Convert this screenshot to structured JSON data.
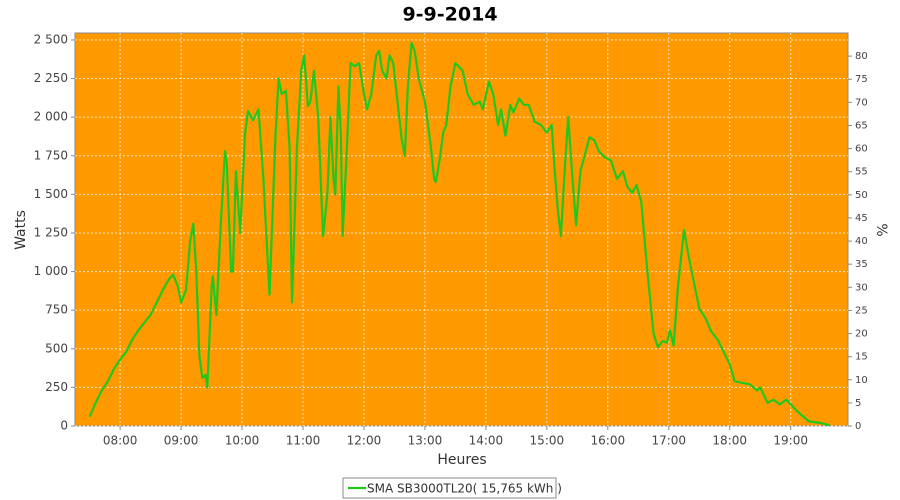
{
  "chart_data": {
    "type": "line",
    "title": "9-9-2014",
    "xlabel": "Heures",
    "ylabel": "Watts",
    "y2label": "%",
    "x": [
      7.5,
      7.6,
      7.7,
      7.8,
      7.9,
      8.0,
      8.1,
      8.2,
      8.3,
      8.4,
      8.5,
      8.6,
      8.7,
      8.8,
      8.87,
      8.95,
      9.0,
      9.08,
      9.15,
      9.2,
      9.25,
      9.3,
      9.35,
      9.4,
      9.43,
      9.5,
      9.52,
      9.58,
      9.65,
      9.72,
      9.75,
      9.82,
      9.85,
      9.9,
      9.97,
      10.05,
      10.1,
      10.18,
      10.27,
      10.35,
      10.45,
      10.55,
      10.6,
      10.65,
      10.72,
      10.78,
      10.82,
      10.9,
      10.97,
      11.02,
      11.08,
      11.12,
      11.18,
      11.25,
      11.3,
      11.33,
      11.4,
      11.45,
      11.5,
      11.53,
      11.58,
      11.62,
      11.65,
      11.72,
      11.78,
      11.85,
      11.92,
      12.0,
      12.05,
      12.12,
      12.2,
      12.25,
      12.3,
      12.37,
      12.42,
      12.48,
      12.55,
      12.62,
      12.67,
      12.72,
      12.78,
      12.83,
      12.9,
      13.0,
      13.05,
      13.1,
      13.15,
      13.18,
      13.25,
      13.3,
      13.35,
      13.42,
      13.5,
      13.55,
      13.62,
      13.7,
      13.8,
      13.9,
      13.95,
      14.05,
      14.12,
      14.2,
      14.25,
      14.32,
      14.4,
      14.45,
      14.55,
      14.62,
      14.7,
      14.8,
      14.9,
      15.0,
      15.08,
      15.12,
      15.18,
      15.23,
      15.3,
      15.35,
      15.42,
      15.48,
      15.55,
      15.62,
      15.7,
      15.78,
      15.85,
      15.95,
      16.05,
      16.15,
      16.25,
      16.32,
      16.4,
      16.47,
      16.55,
      16.65,
      16.75,
      16.82,
      16.9,
      16.97,
      17.02,
      17.08,
      17.15,
      17.25,
      17.35,
      17.5,
      17.6,
      17.7,
      17.8,
      17.9,
      18.0,
      18.08,
      18.2,
      18.33,
      18.45,
      18.5,
      18.62,
      18.72,
      18.82,
      18.93,
      19.07,
      19.15,
      19.3,
      19.48,
      19.64
    ],
    "series": [
      {
        "name": "SMA SB3000TL20( 15,765 kWh )",
        "color": "#1fc81f",
        "values": [
          60,
          150,
          230,
          290,
          370,
          430,
          480,
          560,
          620,
          670,
          720,
          800,
          880,
          950,
          980,
          900,
          800,
          880,
          1200,
          1310,
          1000,
          450,
          310,
          330,
          250,
          900,
          970,
          720,
          1300,
          1780,
          1700,
          1000,
          1000,
          1650,
          1250,
          1900,
          2040,
          1980,
          2050,
          1600,
          850,
          1900,
          2250,
          2150,
          2170,
          1800,
          800,
          1800,
          2300,
          2400,
          2070,
          2100,
          2300,
          2000,
          1500,
          1230,
          1500,
          2000,
          1600,
          1500,
          2200,
          1900,
          1230,
          1800,
          2350,
          2330,
          2350,
          2150,
          2050,
          2150,
          2400,
          2430,
          2300,
          2250,
          2400,
          2350,
          2100,
          1850,
          1750,
          2200,
          2480,
          2430,
          2250,
          2100,
          1950,
          1800,
          1600,
          1580,
          1750,
          1900,
          1950,
          2200,
          2350,
          2330,
          2300,
          2150,
          2080,
          2100,
          2050,
          2230,
          2150,
          1950,
          2050,
          1880,
          2080,
          2030,
          2120,
          2080,
          2080,
          1970,
          1950,
          1900,
          1950,
          1700,
          1400,
          1230,
          1700,
          2000,
          1600,
          1300,
          1650,
          1750,
          1870,
          1850,
          1780,
          1740,
          1720,
          1600,
          1650,
          1550,
          1510,
          1560,
          1450,
          1000,
          600,
          510,
          550,
          540,
          620,
          520,
          900,
          1270,
          1050,
          760,
          700,
          610,
          560,
          480,
          400,
          290,
          280,
          270,
          230,
          250,
          150,
          170,
          140,
          170,
          110,
          80,
          30,
          20,
          5
        ]
      }
    ],
    "xlim": [
      7.26,
      19.94
    ],
    "xticks": [
      {
        "value": 8,
        "label": "08:00"
      },
      {
        "value": 9,
        "label": "09:00"
      },
      {
        "value": 10,
        "label": "10:00"
      },
      {
        "value": 11,
        "label": "11:00"
      },
      {
        "value": 12,
        "label": "12:00"
      },
      {
        "value": 13,
        "label": "13:00"
      },
      {
        "value": 14,
        "label": "14:00"
      },
      {
        "value": 15,
        "label": "15:00"
      },
      {
        "value": 16,
        "label": "16:00"
      },
      {
        "value": 17,
        "label": "17:00"
      },
      {
        "value": 18,
        "label": "18:00"
      },
      {
        "value": 19,
        "label": "19:00"
      }
    ],
    "ylim": [
      0,
      2545
    ],
    "yticks": [
      0,
      250,
      500,
      750,
      {
        "value": 1000,
        "label": "1 000"
      },
      {
        "value": 1250,
        "label": "1 250"
      },
      {
        "value": 1500,
        "label": "1 500"
      },
      {
        "value": 1750,
        "label": "1 750"
      },
      {
        "value": 2000,
        "label": "2 000"
      },
      {
        "value": 2250,
        "label": "2 250"
      },
      {
        "value": 2500,
        "label": "2 500"
      }
    ],
    "y2lim": [
      0,
      85
    ],
    "y2ticks": [
      0,
      5,
      10,
      15,
      20,
      25,
      30,
      35,
      40,
      45,
      50,
      55,
      60,
      65,
      70,
      75,
      80
    ],
    "grid": true,
    "plot_background": "#ff9900",
    "legend": "bottom"
  }
}
